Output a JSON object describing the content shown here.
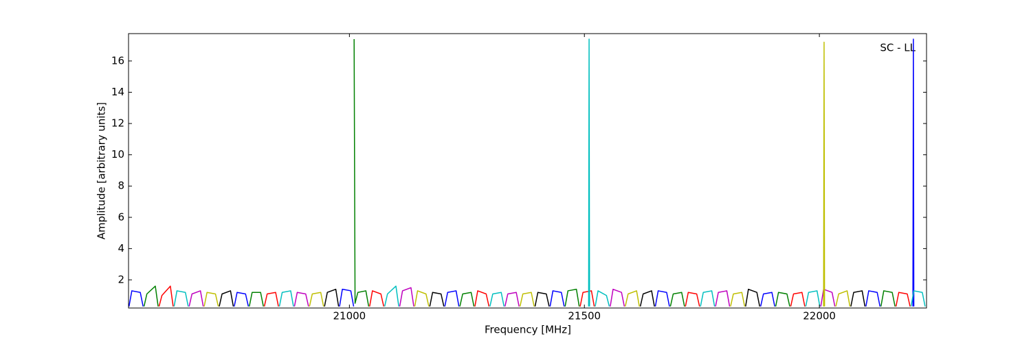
{
  "chart_data": {
    "type": "line",
    "xlabel": "Frequency [MHz]",
    "ylabel": "Amplitude [arbitrary units]",
    "annotation": "SC - LL",
    "xlim": [
      20530,
      22228
    ],
    "ylim": [
      0.2,
      17.75
    ],
    "xticks": [
      21000,
      21500,
      22000
    ],
    "yticks": [
      2,
      4,
      6,
      8,
      10,
      12,
      14,
      16
    ],
    "series": [
      {
        "color": "#0000ff",
        "x": [
          20531,
          20537,
          20555,
          20561,
          20562,
          20755,
          20761,
          20779,
          20785,
          20786,
          20979,
          20985,
          21003,
          21009,
          21010,
          21203,
          21209,
          21227,
          21233,
          21234,
          21427,
          21433,
          21451,
          21457,
          21458,
          21651,
          21657,
          21675,
          21681,
          21682,
          21875,
          21881,
          21899,
          21905,
          21906,
          22099,
          22105,
          22123,
          22129,
          22130,
          22199,
          22200,
          22201
        ],
        "values": [
          0.3,
          1.3,
          1.2,
          0.3,
          null,
          0.3,
          1.2,
          1.1,
          0.3,
          null,
          0.3,
          1.4,
          1.3,
          0.3,
          null,
          0.3,
          1.2,
          1.3,
          0.3,
          null,
          0.3,
          1.3,
          1.2,
          0.3,
          null,
          0.3,
          1.3,
          1.2,
          0.3,
          null,
          0.3,
          1.1,
          1.2,
          0.3,
          null,
          0.3,
          1.3,
          1.2,
          0.3,
          null,
          0.3,
          17.4,
          0.3
        ]
      },
      {
        "color": "#008000",
        "x": [
          20563,
          20569,
          20587,
          20593,
          20594,
          20787,
          20793,
          20811,
          20817,
          20818,
          21010,
          21012,
          21018,
          21035,
          21041,
          21042,
          21235,
          21241,
          21259,
          21265,
          21266,
          21459,
          21465,
          21483,
          21489,
          21490,
          21683,
          21689,
          21707,
          21713,
          21714,
          21907,
          21913,
          21931,
          21937,
          21938,
          22131,
          22137,
          22155,
          22161
        ],
        "values": [
          0.3,
          1.1,
          1.6,
          0.3,
          null,
          0.3,
          1.2,
          1.2,
          0.3,
          null,
          17.4,
          0.5,
          1.2,
          1.3,
          0.3,
          null,
          0.3,
          1.1,
          1.2,
          0.3,
          null,
          0.3,
          1.3,
          1.4,
          0.3,
          null,
          0.3,
          1.1,
          1.2,
          0.3,
          null,
          0.3,
          1.2,
          1.1,
          0.3,
          null,
          0.3,
          1.3,
          1.2,
          0.3
        ]
      },
      {
        "color": "#ff0000",
        "x": [
          20595,
          20601,
          20619,
          20625,
          20626,
          20819,
          20825,
          20843,
          20849,
          20850,
          21043,
          21049,
          21067,
          21073,
          21074,
          21267,
          21273,
          21291,
          21297,
          21298,
          21491,
          21497,
          21515,
          21521,
          21522,
          21715,
          21721,
          21739,
          21745,
          21746,
          21939,
          21945,
          21963,
          21969,
          21970,
          22163,
          22169,
          22187,
          22193
        ],
        "values": [
          0.3,
          1.0,
          1.6,
          0.3,
          null,
          0.3,
          1.1,
          1.2,
          0.3,
          null,
          0.3,
          1.3,
          1.1,
          0.3,
          null,
          0.3,
          1.3,
          1.1,
          0.3,
          null,
          0.3,
          1.2,
          1.3,
          0.3,
          null,
          0.3,
          1.2,
          1.1,
          0.3,
          null,
          0.3,
          1.1,
          1.2,
          0.3,
          null,
          0.3,
          1.2,
          1.1,
          0.3
        ]
      },
      {
        "color": "#00bfbf",
        "x": [
          20627,
          20633,
          20651,
          20657,
          20658,
          20851,
          20857,
          20875,
          20881,
          20882,
          21075,
          21081,
          21099,
          21105,
          21106,
          21299,
          21305,
          21323,
          21329,
          21330,
          21509,
          21510,
          21511,
          21512,
          21523,
          21529,
          21547,
          21553,
          21554,
          21747,
          21753,
          21771,
          21777,
          21778,
          21971,
          21977,
          21995,
          22001,
          22002,
          22195,
          22201,
          22219,
          22225
        ],
        "values": [
          0.3,
          1.3,
          1.2,
          0.3,
          null,
          0.3,
          1.2,
          1.3,
          0.3,
          null,
          0.3,
          1.1,
          1.6,
          0.3,
          null,
          0.3,
          1.1,
          1.2,
          0.3,
          null,
          0.3,
          17.4,
          0.3,
          null,
          0.3,
          1.3,
          1.0,
          0.3,
          null,
          0.3,
          1.2,
          1.3,
          0.3,
          null,
          0.3,
          1.2,
          1.3,
          0.3,
          null,
          0.3,
          1.3,
          1.2,
          0.3
        ]
      },
      {
        "color": "#bf00bf",
        "x": [
          20659,
          20665,
          20683,
          20689,
          20690,
          20883,
          20889,
          20907,
          20913,
          20914,
          21107,
          21113,
          21131,
          21137,
          21138,
          21331,
          21337,
          21355,
          21361,
          21362,
          21555,
          21561,
          21579,
          21585,
          21586,
          21779,
          21785,
          21803,
          21809,
          21810,
          22003,
          22009,
          22027,
          22033
        ],
        "values": [
          0.3,
          1.1,
          1.3,
          0.3,
          null,
          0.3,
          1.2,
          1.1,
          0.3,
          null,
          0.3,
          1.3,
          1.5,
          0.3,
          null,
          0.3,
          1.1,
          1.2,
          0.3,
          null,
          0.3,
          1.4,
          1.2,
          0.3,
          null,
          0.3,
          1.2,
          1.3,
          0.3,
          null,
          0.3,
          1.4,
          1.2,
          0.3
        ]
      },
      {
        "color": "#bfbf00",
        "x": [
          20691,
          20697,
          20715,
          20721,
          20722,
          20915,
          20921,
          20939,
          20945,
          20946,
          21139,
          21145,
          21163,
          21169,
          21170,
          21363,
          21369,
          21387,
          21393,
          21394,
          21587,
          21593,
          21611,
          21617,
          21618,
          21811,
          21817,
          21835,
          21841,
          21842,
          22009,
          22010,
          22011,
          22012,
          22035,
          22041,
          22059,
          22065
        ],
        "values": [
          0.3,
          1.2,
          1.1,
          0.3,
          null,
          0.3,
          1.1,
          1.2,
          0.3,
          null,
          0.3,
          1.3,
          1.1,
          0.3,
          null,
          0.3,
          1.1,
          1.2,
          0.3,
          null,
          0.3,
          1.1,
          1.3,
          0.3,
          null,
          0.3,
          1.1,
          1.2,
          0.3,
          null,
          0.3,
          17.2,
          0.3,
          null,
          0.3,
          1.1,
          1.3,
          0.3
        ]
      },
      {
        "color": "#000000",
        "x": [
          20723,
          20729,
          20747,
          20753,
          20754,
          20947,
          20953,
          20971,
          20977,
          20978,
          21171,
          21177,
          21195,
          21201,
          21202,
          21395,
          21401,
          21419,
          21425,
          21426,
          21619,
          21625,
          21643,
          21649,
          21650,
          21843,
          21849,
          21867,
          21873,
          21874,
          22067,
          22073,
          22091,
          22097
        ],
        "values": [
          0.3,
          1.1,
          1.3,
          0.3,
          null,
          0.3,
          1.2,
          1.4,
          0.3,
          null,
          0.3,
          1.2,
          1.1,
          0.3,
          null,
          0.3,
          1.2,
          1.1,
          0.3,
          null,
          0.3,
          1.1,
          1.3,
          0.3,
          null,
          0.3,
          1.4,
          1.2,
          0.3,
          null,
          0.3,
          1.2,
          1.3,
          0.3
        ]
      }
    ]
  }
}
